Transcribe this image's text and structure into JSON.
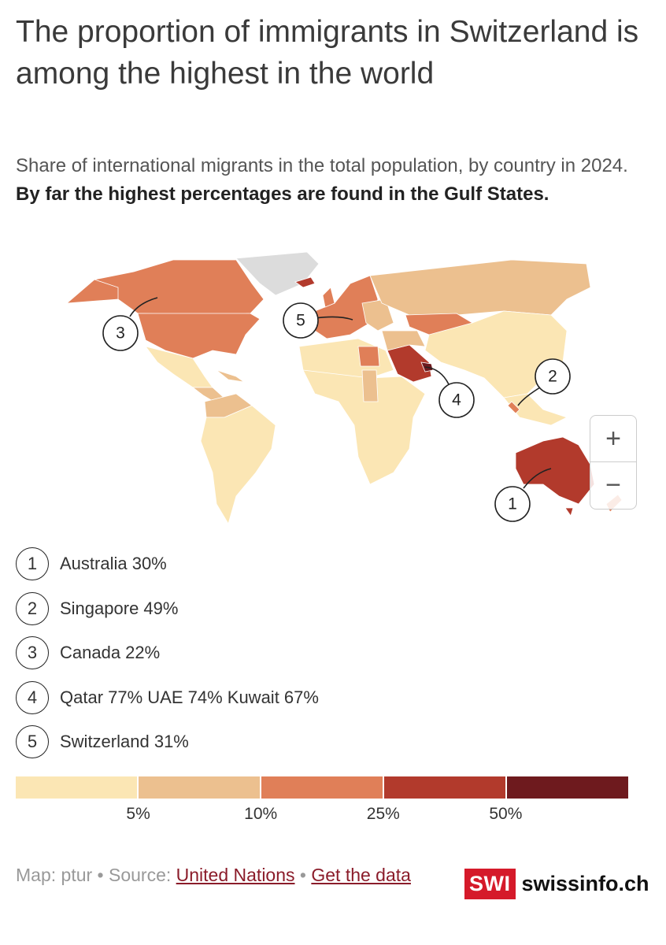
{
  "header": {
    "title": "The proportion of immigrants in Switzerland is among the highest in the world",
    "subtitle": "Share of international migrants in the total population, by country in 2024.",
    "subtitle_emphasis": "By far the highest percentages are found in the Gulf States."
  },
  "map": {
    "markers": [
      "1",
      "2",
      "3",
      "4",
      "5"
    ]
  },
  "controls": {
    "zoom_in": "+",
    "zoom_out": "−"
  },
  "annotations": [
    {
      "number": "1",
      "text": "Australia 30%"
    },
    {
      "number": "2",
      "text": "Singapore 49%"
    },
    {
      "number": "3",
      "text": "Canada 22%"
    },
    {
      "number": "4",
      "text": "Qatar 77% UAE 74% Kuwait 67%"
    },
    {
      "number": "5",
      "text": "Switzerland 31%"
    }
  ],
  "legend": {
    "colors": [
      "#fbe6b4",
      "#ecc08f",
      "#e07f58",
      "#b23a2c",
      "#6e1a1e"
    ],
    "labels": [
      "5%",
      "10%",
      "25%",
      "50%"
    ]
  },
  "footer": {
    "credit": "Map: ptur",
    "separator": "•",
    "source_label": "Source:",
    "source_link": "United Nations",
    "data_link": "Get the data"
  },
  "logo": {
    "brand": "SWI",
    "site": "swissinfo.ch"
  }
}
